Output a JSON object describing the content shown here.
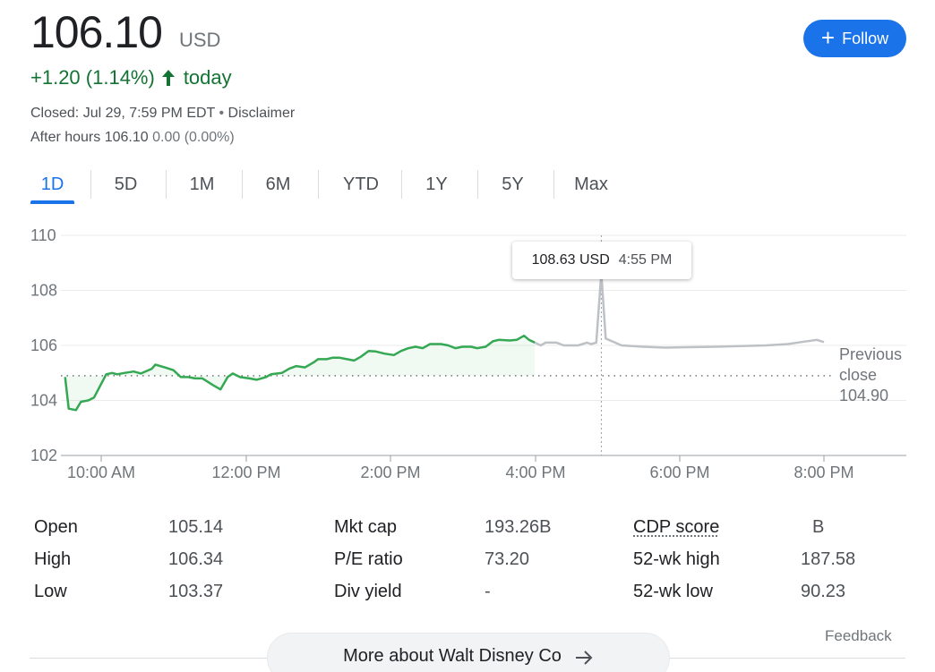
{
  "quote": {
    "price": "106.10",
    "currency": "USD",
    "change": "+1.20 (1.14%)",
    "change_period": "today",
    "closed_text": "Closed: Jul 29, 7:59 PM EDT",
    "separator": " • ",
    "disclaimer": "Disclaimer",
    "after_hours_label": "After hours",
    "after_hours_price": "106.10",
    "after_hours_change": "0.00 (0.00%)",
    "positive_color": "#137333"
  },
  "follow_button": {
    "label": "Follow",
    "color": "#1a73e8"
  },
  "tabs": [
    "1D",
    "5D",
    "1M",
    "6M",
    "YTD",
    "1Y",
    "5Y",
    "Max"
  ],
  "active_tab": "1D",
  "chart_data": {
    "type": "line",
    "y_ticks": [
      "110",
      "108",
      "106",
      "104",
      "102"
    ],
    "x_ticks": [
      "10:00 AM",
      "12:00 PM",
      "2:00 PM",
      "4:00 PM",
      "6:00 PM",
      "8:00 PM"
    ],
    "ylim": [
      102,
      110
    ],
    "xlim_hours": [
      9.5,
      20.5
    ],
    "grid": true,
    "previous_close": 104.9,
    "previous_close_label": [
      "Previous",
      "close",
      "104.90"
    ],
    "series": [
      {
        "session": "regular",
        "color": "#34a853",
        "points": [
          [
            9.5,
            104.85
          ],
          [
            9.55,
            103.7
          ],
          [
            9.65,
            103.65
          ],
          [
            9.72,
            103.95
          ],
          [
            9.82,
            104.0
          ],
          [
            9.9,
            104.1
          ],
          [
            9.98,
            104.5
          ],
          [
            10.07,
            104.95
          ],
          [
            10.15,
            105.0
          ],
          [
            10.22,
            104.95
          ],
          [
            10.32,
            105.0
          ],
          [
            10.45,
            105.05
          ],
          [
            10.55,
            104.98
          ],
          [
            10.7,
            105.15
          ],
          [
            10.75,
            105.3
          ],
          [
            10.88,
            105.2
          ],
          [
            11.0,
            105.1
          ],
          [
            11.1,
            104.85
          ],
          [
            11.2,
            104.85
          ],
          [
            11.3,
            104.8
          ],
          [
            11.4,
            104.8
          ],
          [
            11.55,
            104.55
          ],
          [
            11.65,
            104.4
          ],
          [
            11.75,
            104.85
          ],
          [
            11.82,
            104.98
          ],
          [
            11.92,
            104.85
          ],
          [
            12.05,
            104.8
          ],
          [
            12.15,
            104.75
          ],
          [
            12.28,
            104.85
          ],
          [
            12.35,
            104.95
          ],
          [
            12.5,
            105.0
          ],
          [
            12.6,
            105.15
          ],
          [
            12.7,
            105.25
          ],
          [
            12.82,
            105.2
          ],
          [
            12.95,
            105.4
          ],
          [
            13.0,
            105.5
          ],
          [
            13.12,
            105.5
          ],
          [
            13.2,
            105.55
          ],
          [
            13.3,
            105.55
          ],
          [
            13.4,
            105.5
          ],
          [
            13.5,
            105.45
          ],
          [
            13.6,
            105.6
          ],
          [
            13.7,
            105.8
          ],
          [
            13.8,
            105.78
          ],
          [
            13.92,
            105.7
          ],
          [
            14.05,
            105.65
          ],
          [
            14.15,
            105.8
          ],
          [
            14.25,
            105.9
          ],
          [
            14.35,
            105.95
          ],
          [
            14.45,
            105.9
          ],
          [
            14.55,
            106.05
          ],
          [
            14.7,
            106.05
          ],
          [
            14.8,
            106.0
          ],
          [
            14.9,
            105.9
          ],
          [
            15.0,
            105.95
          ],
          [
            15.12,
            105.95
          ],
          [
            15.2,
            105.9
          ],
          [
            15.32,
            105.95
          ],
          [
            15.42,
            106.15
          ],
          [
            15.5,
            106.2
          ],
          [
            15.65,
            106.18
          ],
          [
            15.75,
            106.2
          ],
          [
            15.85,
            106.35
          ],
          [
            15.92,
            106.2
          ],
          [
            16.0,
            106.1
          ]
        ]
      },
      {
        "session": "after-hours",
        "color": "#bdc1c6",
        "points": [
          [
            16.0,
            106.1
          ],
          [
            16.08,
            106.0
          ],
          [
            16.15,
            106.1
          ],
          [
            16.3,
            106.1
          ],
          [
            16.4,
            106.0
          ],
          [
            16.6,
            106.0
          ],
          [
            16.72,
            106.1
          ],
          [
            16.78,
            106.05
          ],
          [
            16.85,
            106.1
          ],
          [
            16.92,
            108.63
          ],
          [
            16.98,
            106.25
          ],
          [
            17.2,
            106.0
          ],
          [
            17.5,
            105.95
          ],
          [
            17.8,
            105.92
          ],
          [
            18.5,
            105.95
          ],
          [
            19.2,
            106.0
          ],
          [
            19.5,
            106.05
          ],
          [
            19.9,
            106.2
          ],
          [
            20.0,
            106.12
          ]
        ]
      }
    ],
    "hover": {
      "value": "108.63 USD",
      "time": "4:55 PM",
      "x_hours": 16.92,
      "y": 108.63
    }
  },
  "stats": [
    {
      "label": "Open",
      "value": "105.14"
    },
    {
      "label": "High",
      "value": "106.34"
    },
    {
      "label": "Low",
      "value": "103.37"
    },
    {
      "label": "Mkt cap",
      "value": "193.26B"
    },
    {
      "label": "P/E ratio",
      "value": "73.20"
    },
    {
      "label": "Div yield",
      "value": "-"
    },
    {
      "label": "CDP score",
      "value": "B"
    },
    {
      "label": "52-wk high",
      "value": "187.58"
    },
    {
      "label": "52-wk low",
      "value": "90.23"
    }
  ],
  "feedback": "Feedback",
  "more_button": {
    "label": "More about Walt Disney Co"
  }
}
